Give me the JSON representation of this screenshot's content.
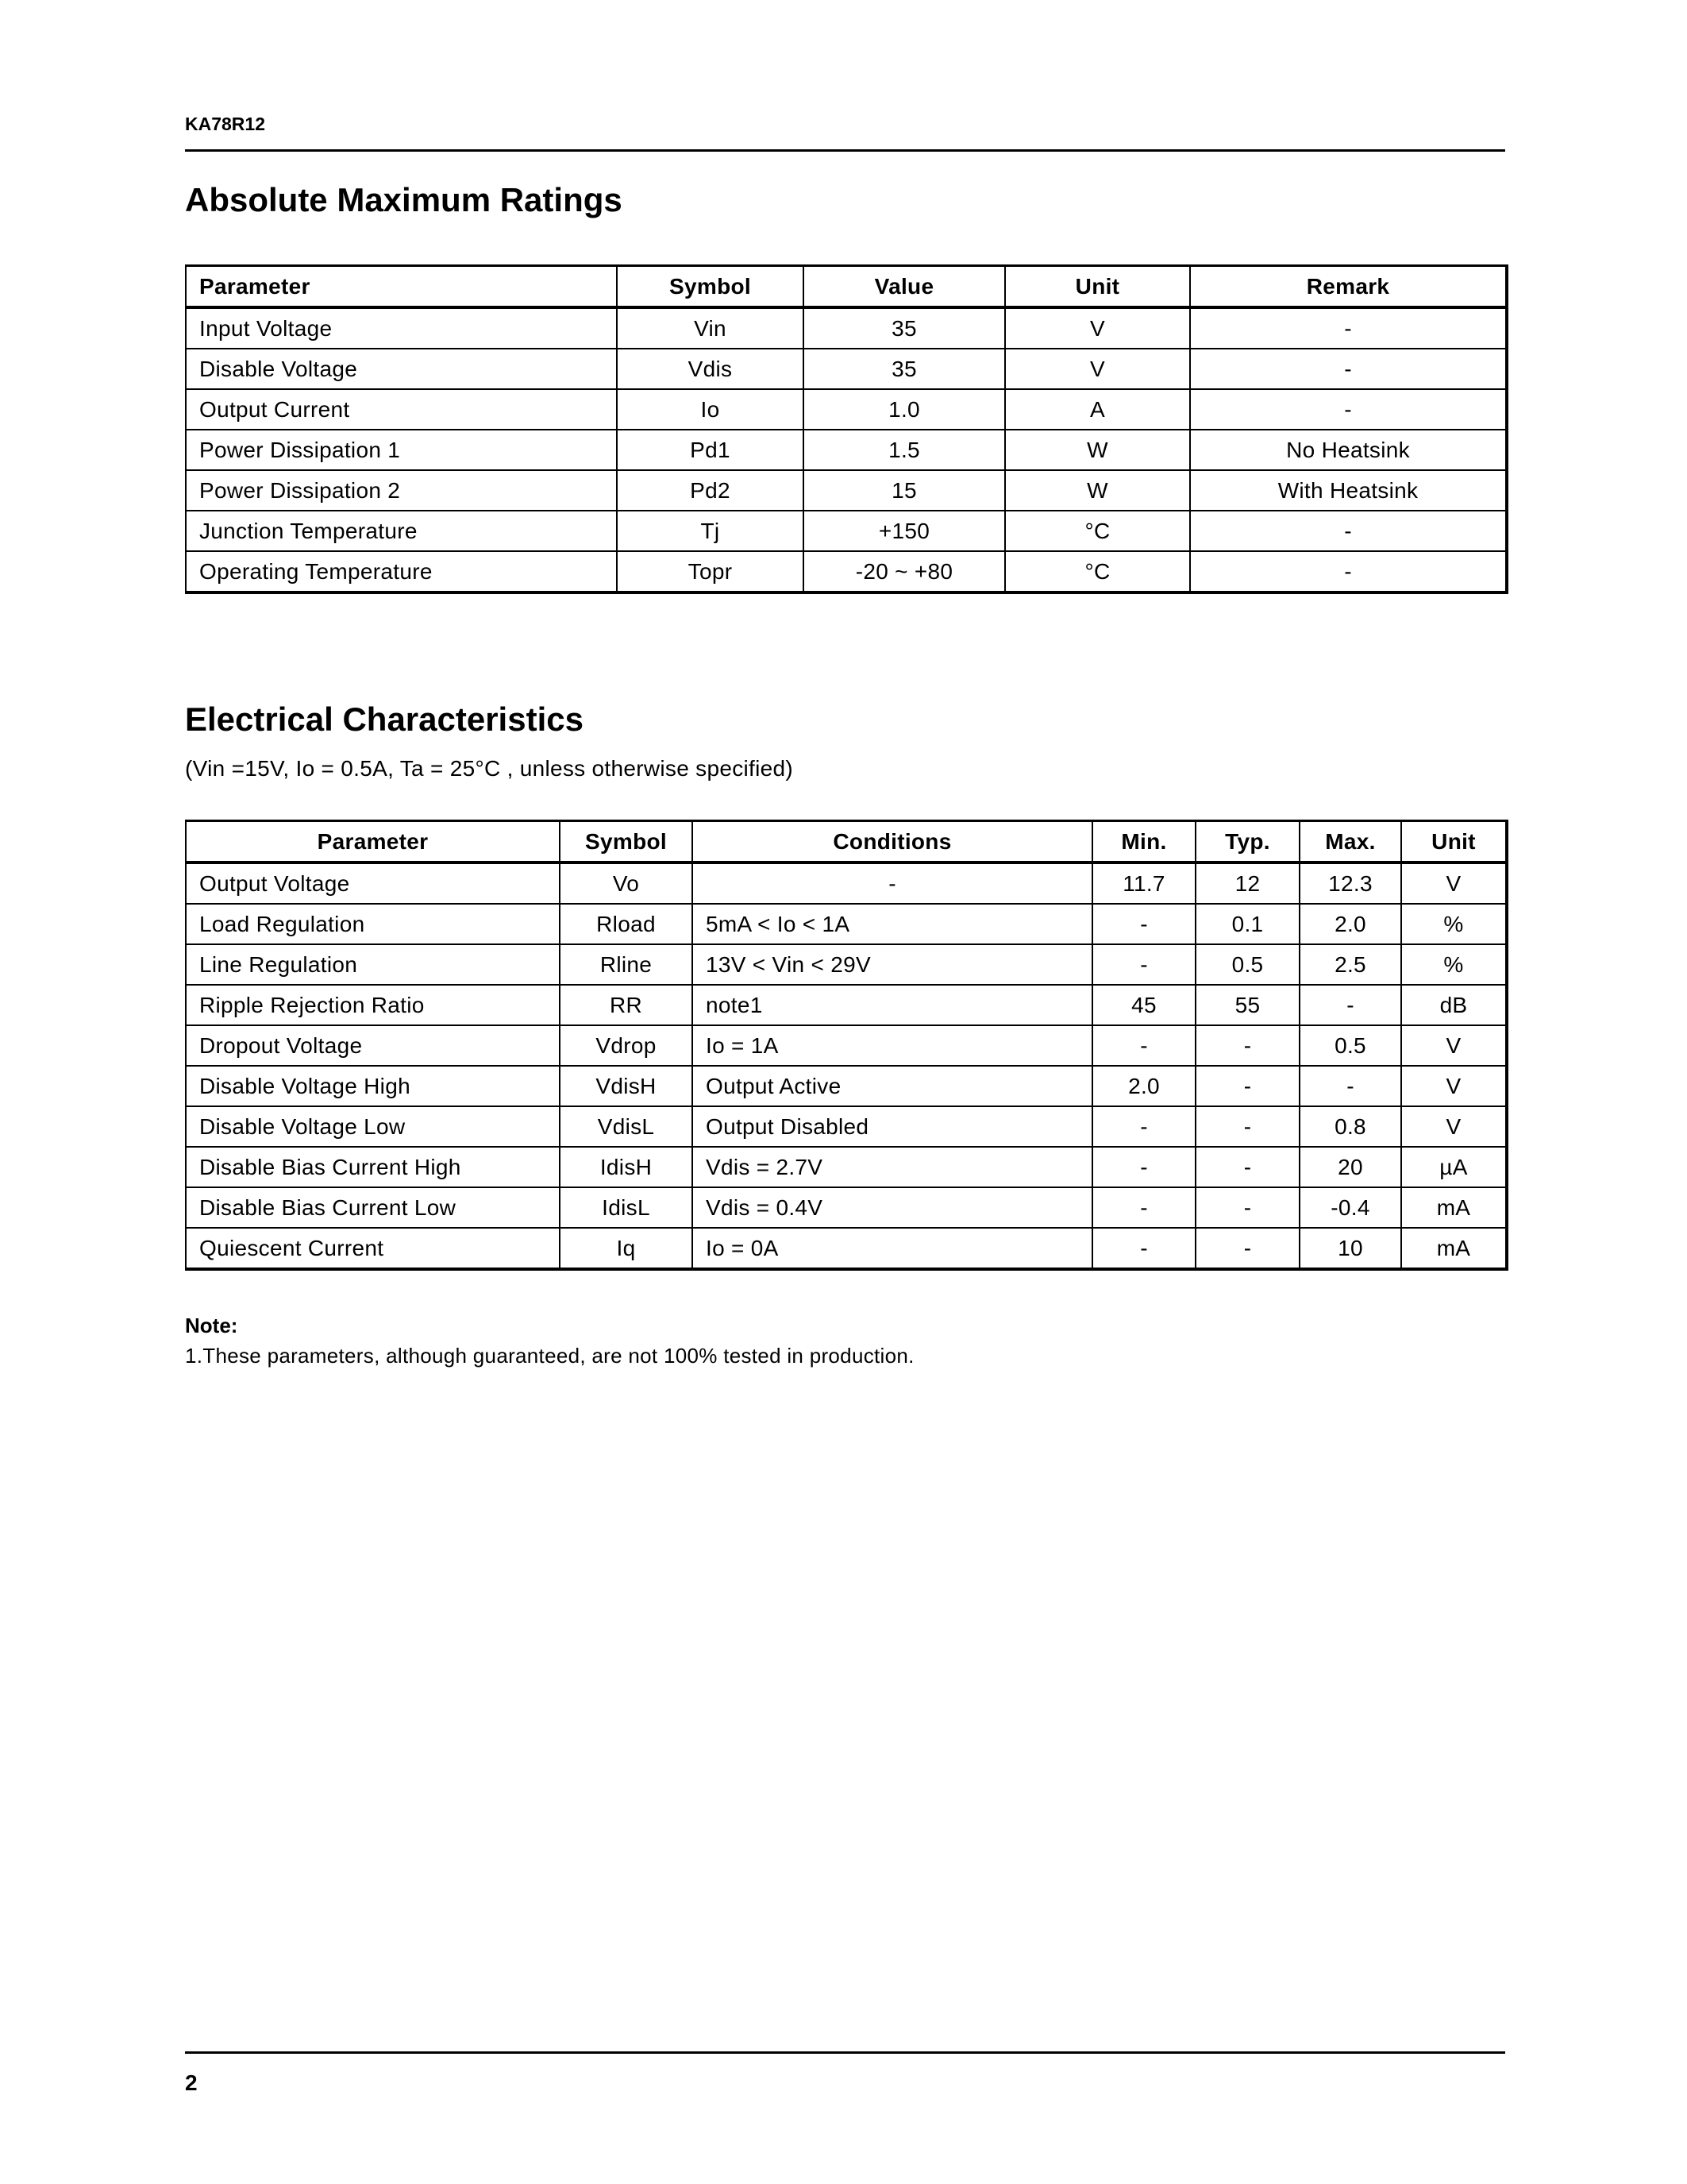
{
  "header": {
    "part_number": "KA78R12"
  },
  "abs_max": {
    "title": "Absolute Maximum Ratings",
    "columns": [
      "Parameter",
      "Symbol",
      "Value",
      "Unit",
      "Remark"
    ],
    "rows": [
      [
        "Input Voltage",
        "Vin",
        "35",
        "V",
        "-"
      ],
      [
        "Disable Voltage",
        "Vdis",
        "35",
        "V",
        "-"
      ],
      [
        "Output Current",
        "Io",
        "1.0",
        "A",
        "-"
      ],
      [
        "Power Dissipation 1",
        "Pd1",
        "1.5",
        "W",
        "No   Heatsink"
      ],
      [
        "Power Dissipation 2",
        "Pd2",
        "15",
        "W",
        "With Heatsink"
      ],
      [
        "Junction Temperature",
        "Tj",
        "+150",
        "°C",
        "-"
      ],
      [
        "Operating Temperature",
        "Topr",
        "-20 ~ +80",
        "°C",
        "-"
      ]
    ]
  },
  "elec": {
    "title": "Electrical Characteristics",
    "subtitle": "(Vin =15V, Io = 0.5A, Ta = 25°C , unless  otherwise specified)",
    "columns": [
      "Parameter",
      "Symbol",
      "Conditions",
      "Min.",
      "Typ.",
      "Max.",
      "Unit"
    ],
    "rows": [
      [
        "Output Voltage",
        "Vo",
        "-",
        "11.7",
        "12",
        "12.3",
        "V"
      ],
      [
        "Load Regulation",
        "Rload",
        "5mA < Io < 1A",
        "-",
        "0.1",
        "2.0",
        "%"
      ],
      [
        "Line Regulation",
        "Rline",
        "13V < Vin < 29V",
        "-",
        "0.5",
        "2.5",
        "%"
      ],
      [
        "Ripple Rejection Ratio",
        "RR",
        "note1",
        "45",
        "55",
        "-",
        "dB"
      ],
      [
        "Dropout Voltage",
        "Vdrop",
        "Io = 1A",
        "-",
        "-",
        "0.5",
        "V"
      ],
      [
        "Disable Voltage High",
        "VdisH",
        "Output Active",
        "2.0",
        "-",
        "-",
        "V"
      ],
      [
        "Disable Voltage Low",
        "VdisL",
        "Output Disabled",
        "-",
        "-",
        "0.8",
        "V"
      ],
      [
        "Disable Bias Current High",
        "IdisH",
        "Vdis = 2.7V",
        "-",
        "-",
        "20",
        "µA"
      ],
      [
        "Disable Bias Current Low",
        "IdisL",
        "Vdis = 0.4V",
        "-",
        "-",
        "-0.4",
        "mA"
      ],
      [
        "Quiescent Current",
        "Iq",
        "Io = 0A",
        "-",
        "-",
        "10",
        "mA"
      ]
    ]
  },
  "note": {
    "title": "Note:",
    "items": [
      "1.These parameters, although guaranteed, are not 100% tested in production."
    ]
  },
  "footer": {
    "page_number": "2"
  }
}
